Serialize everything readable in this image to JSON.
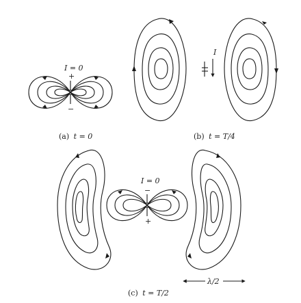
{
  "panel_a": {
    "caption_prefix": "(a)",
    "caption_eq": "t = 0",
    "current_label": "I = 0",
    "plus": "+",
    "minus": "−"
  },
  "panel_b": {
    "caption_prefix": "(b)",
    "caption_eq": "t = T/4",
    "current_symbol": "I"
  },
  "panel_c": {
    "caption_prefix": "(c)",
    "caption_eq": "t = T/2",
    "current_label": "I = 0",
    "minus": "−",
    "plus": "+",
    "wavelength_label": "λ/2"
  }
}
